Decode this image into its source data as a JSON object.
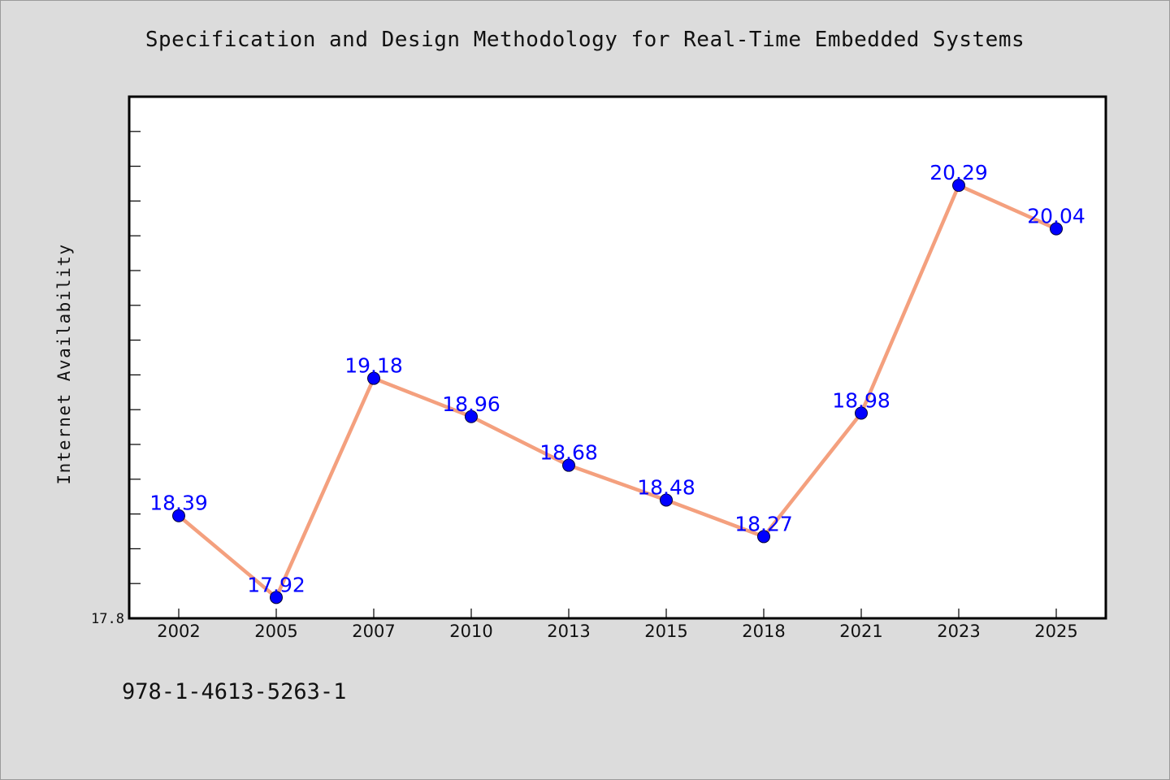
{
  "colors": {
    "background": "#dcdcdc",
    "plot_background": "#ffffff",
    "line": "#f4a07e",
    "marker": "#0000ff",
    "data_label": "#0000ff"
  },
  "footer": {
    "isbn": "978-1-4613-5263-1"
  },
  "chart_data": {
    "type": "line",
    "title": "Specification and Design Methodology for Real-Time Embedded Systems",
    "xlabel": "",
    "ylabel": "Internet Availability",
    "categories": [
      "2002",
      "2005",
      "2007",
      "2010",
      "2013",
      "2015",
      "2018",
      "2021",
      "2023",
      "2025"
    ],
    "series": [
      {
        "values": [
          18.39,
          17.92,
          19.18,
          18.96,
          18.68,
          18.48,
          18.27,
          18.98,
          20.29,
          20.04
        ]
      }
    ],
    "ylim": [
      17.8,
      20.8
    ],
    "y_tick_labels": [
      "17.8"
    ],
    "grid": false,
    "legend": "none"
  }
}
